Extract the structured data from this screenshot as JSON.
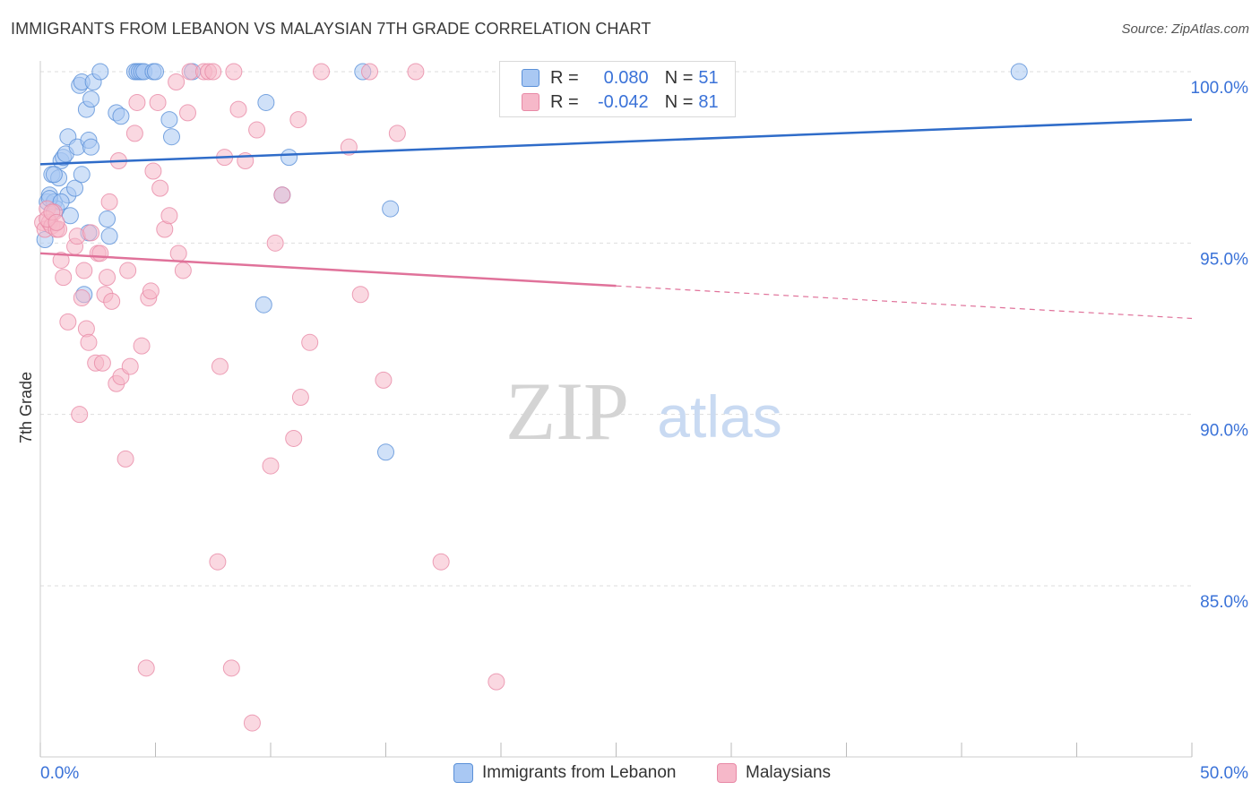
{
  "title": "IMMIGRANTS FROM LEBANON VS MALAYSIAN 7TH GRADE CORRELATION CHART",
  "source": "Source: ZipAtlas.com",
  "watermark": {
    "zip": "ZIP",
    "atlas": "atlas"
  },
  "legend": {
    "r_label": "R =",
    "n_label": "N =",
    "rows": [
      {
        "r": "0.080",
        "n": "51"
      },
      {
        "r": "-0.042",
        "n": "81"
      }
    ]
  },
  "colors": {
    "blue_fill": "#a9c8f3",
    "blue_stroke": "#5a90d8",
    "blue_line": "#2f6cc9",
    "pink_fill": "#f6b8c9",
    "pink_stroke": "#e889a6",
    "pink_line": "#e0729a",
    "tick_label": "#3a72d8",
    "grid": "#dddddd"
  },
  "chart_data": {
    "type": "scatter",
    "ylabel": "7th Grade",
    "xlabel": "",
    "xlim": [
      0,
      50
    ],
    "ylim": [
      80.5,
      100.8
    ],
    "x_tick_labels": [
      {
        "value": 0,
        "label": "0.0%"
      },
      {
        "value": 50,
        "label": "50.0%"
      }
    ],
    "y_tick_labels": [
      {
        "value": 100,
        "label": "100.0%"
      },
      {
        "value": 95,
        "label": "95.0%"
      },
      {
        "value": 90,
        "label": "90.0%"
      },
      {
        "value": 85,
        "label": "85.0%"
      }
    ],
    "grid": true,
    "legend_position": "top-center",
    "series": [
      {
        "name": "Immigrants from Lebanon",
        "color": "#a9c8f3",
        "trend": {
          "x": [
            0,
            50
          ],
          "y": [
            97.3,
            98.6
          ],
          "dashed_from": null
        },
        "points": [
          [
            0.2,
            95.1
          ],
          [
            0.3,
            96.2
          ],
          [
            0.4,
            96.4
          ],
          [
            0.5,
            97.0
          ],
          [
            0.6,
            96.2
          ],
          [
            0.7,
            96.0
          ],
          [
            0.8,
            96.9
          ],
          [
            0.9,
            97.4
          ],
          [
            1.0,
            97.5
          ],
          [
            1.1,
            97.6
          ],
          [
            1.2,
            96.4
          ],
          [
            1.2,
            98.1
          ],
          [
            1.3,
            95.8
          ],
          [
            1.5,
            96.6
          ],
          [
            1.6,
            97.8
          ],
          [
            1.7,
            99.6
          ],
          [
            1.8,
            99.7
          ],
          [
            1.8,
            97.0
          ],
          [
            1.9,
            93.5
          ],
          [
            2.0,
            98.9
          ],
          [
            2.1,
            95.3
          ],
          [
            2.1,
            98.0
          ],
          [
            2.2,
            97.8
          ],
          [
            2.2,
            99.2
          ],
          [
            2.3,
            99.7
          ],
          [
            2.6,
            100.0
          ],
          [
            2.9,
            95.7
          ],
          [
            3.0,
            95.2
          ],
          [
            3.3,
            98.8
          ],
          [
            3.5,
            98.7
          ],
          [
            4.1,
            100.0
          ],
          [
            4.2,
            100.0
          ],
          [
            4.3,
            100.0
          ],
          [
            4.4,
            100.0
          ],
          [
            4.5,
            100.0
          ],
          [
            5.6,
            98.6
          ],
          [
            4.9,
            100.0
          ],
          [
            5.0,
            100.0
          ],
          [
            5.7,
            98.1
          ],
          [
            6.6,
            100.0
          ],
          [
            9.7,
            93.2
          ],
          [
            9.8,
            99.1
          ],
          [
            10.5,
            96.4
          ],
          [
            10.8,
            97.5
          ],
          [
            14.0,
            100.0
          ],
          [
            15.0,
            88.9
          ],
          [
            15.2,
            96.0
          ],
          [
            42.5,
            100.0
          ],
          [
            0.4,
            96.3
          ],
          [
            0.6,
            97.0
          ],
          [
            0.9,
            96.2
          ]
        ]
      },
      {
        "name": "Malaysians",
        "color": "#f6b8c9",
        "trend": {
          "x": [
            0,
            50
          ],
          "y": [
            94.7,
            92.8
          ],
          "dashed_from": 25
        },
        "points": [
          [
            0.1,
            95.6
          ],
          [
            0.2,
            95.4
          ],
          [
            0.3,
            96.0
          ],
          [
            0.4,
            95.6
          ],
          [
            0.5,
            95.5
          ],
          [
            0.6,
            95.9
          ],
          [
            0.7,
            95.4
          ],
          [
            0.8,
            95.4
          ],
          [
            0.9,
            94.5
          ],
          [
            1.0,
            94.0
          ],
          [
            1.2,
            92.7
          ],
          [
            1.5,
            94.9
          ],
          [
            1.6,
            95.2
          ],
          [
            1.7,
            90.0
          ],
          [
            1.8,
            93.4
          ],
          [
            1.9,
            94.2
          ],
          [
            2.0,
            92.5
          ],
          [
            2.1,
            92.1
          ],
          [
            2.2,
            95.3
          ],
          [
            2.4,
            91.5
          ],
          [
            2.5,
            94.7
          ],
          [
            2.6,
            94.7
          ],
          [
            2.7,
            91.5
          ],
          [
            2.8,
            93.5
          ],
          [
            2.9,
            94.0
          ],
          [
            3.0,
            96.2
          ],
          [
            3.1,
            93.3
          ],
          [
            3.3,
            90.9
          ],
          [
            3.4,
            97.4
          ],
          [
            3.5,
            91.1
          ],
          [
            3.7,
            88.7
          ],
          [
            3.8,
            94.2
          ],
          [
            3.9,
            91.4
          ],
          [
            4.1,
            98.2
          ],
          [
            4.2,
            99.1
          ],
          [
            4.4,
            92.0
          ],
          [
            4.6,
            82.6
          ],
          [
            4.7,
            93.4
          ],
          [
            4.8,
            93.6
          ],
          [
            4.9,
            97.1
          ],
          [
            5.1,
            99.1
          ],
          [
            5.2,
            96.6
          ],
          [
            5.4,
            95.4
          ],
          [
            5.6,
            95.8
          ],
          [
            5.9,
            99.7
          ],
          [
            6.0,
            94.7
          ],
          [
            6.2,
            94.2
          ],
          [
            6.4,
            98.8
          ],
          [
            6.5,
            100.0
          ],
          [
            7.1,
            100.0
          ],
          [
            7.3,
            100.0
          ],
          [
            7.5,
            100.0
          ],
          [
            7.8,
            91.4
          ],
          [
            7.7,
            85.7
          ],
          [
            8.0,
            97.5
          ],
          [
            8.3,
            82.6
          ],
          [
            8.4,
            100.0
          ],
          [
            8.6,
            98.9
          ],
          [
            8.9,
            97.4
          ],
          [
            9.2,
            81.0
          ],
          [
            9.4,
            98.3
          ],
          [
            10.0,
            88.5
          ],
          [
            10.2,
            95.0
          ],
          [
            10.5,
            96.4
          ],
          [
            11.0,
            89.3
          ],
          [
            11.2,
            98.6
          ],
          [
            11.3,
            90.5
          ],
          [
            11.7,
            92.1
          ],
          [
            12.2,
            100.0
          ],
          [
            13.4,
            97.8
          ],
          [
            13.9,
            93.5
          ],
          [
            14.3,
            100.0
          ],
          [
            14.9,
            91.0
          ],
          [
            15.5,
            98.2
          ],
          [
            16.3,
            100.0
          ],
          [
            17.4,
            85.7
          ],
          [
            19.8,
            82.2
          ],
          [
            23.2,
            100.0
          ],
          [
            0.3,
            95.7
          ],
          [
            0.5,
            95.9
          ],
          [
            0.7,
            95.6
          ]
        ]
      }
    ]
  },
  "bottom_legend": [
    {
      "label": "Immigrants from Lebanon"
    },
    {
      "label": "Malaysians"
    }
  ]
}
